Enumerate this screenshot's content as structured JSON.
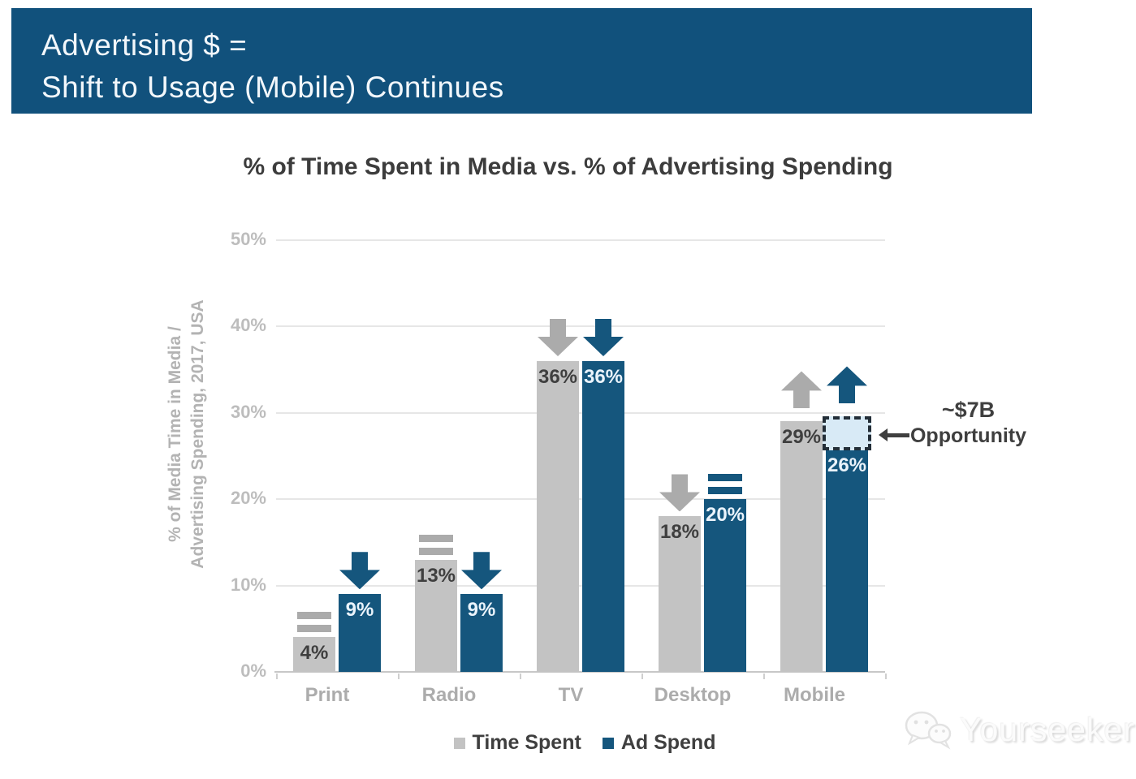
{
  "banner": {
    "line1": "Advertising $ =",
    "line2": "Shift to Usage (Mobile) Continues"
  },
  "chart_data": {
    "type": "bar",
    "title": "% of Time Spent in Media vs. % of Advertising Spending",
    "ylabel_line1": "% of Media Time in Media /",
    "ylabel_line2": "Advertising Spending, 2017, USA",
    "categories": [
      "Print",
      "Radio",
      "TV",
      "Desktop",
      "Mobile"
    ],
    "series": [
      {
        "name": "Time Spent",
        "values": [
          4,
          13,
          36,
          18,
          29
        ],
        "labels": [
          "4%",
          "13%",
          "36%",
          "18%",
          "29%"
        ],
        "trends": [
          "flat",
          "flat",
          "down",
          "down",
          "up"
        ]
      },
      {
        "name": "Ad Spend",
        "values": [
          9,
          9,
          36,
          20,
          26
        ],
        "labels": [
          "9%",
          "9%",
          "36%",
          "20%",
          "26%"
        ],
        "trends": [
          "down",
          "down",
          "down",
          "flat",
          "up"
        ]
      }
    ],
    "y_ticks": [
      "0%",
      "10%",
      "20%",
      "30%",
      "40%",
      "50%"
    ],
    "ylim": [
      0,
      50
    ],
    "grid": true,
    "legend_position": "bottom",
    "annotation": {
      "line1": "~$7B",
      "line2": "Opportunity",
      "category": "Mobile",
      "series": "Ad Spend",
      "box_top_value": 29,
      "box_bottom_value": 26
    }
  },
  "watermark": {
    "text": "Yourseeker"
  },
  "colors": {
    "banner_bg": "#11517C",
    "banner_text": "#F2F7FB",
    "bar_gray": "#C3C3C3",
    "bar_blue": "#15567D",
    "indicator_gray": "#ABABAB",
    "label_dark": "#3F3F3F",
    "label_light": "#EAF3FB",
    "grid": "#E6E6E6",
    "baseline": "#C8C8C8",
    "opportunity_fill": "#D8EAF6",
    "opportunity_border": "#232E38"
  }
}
